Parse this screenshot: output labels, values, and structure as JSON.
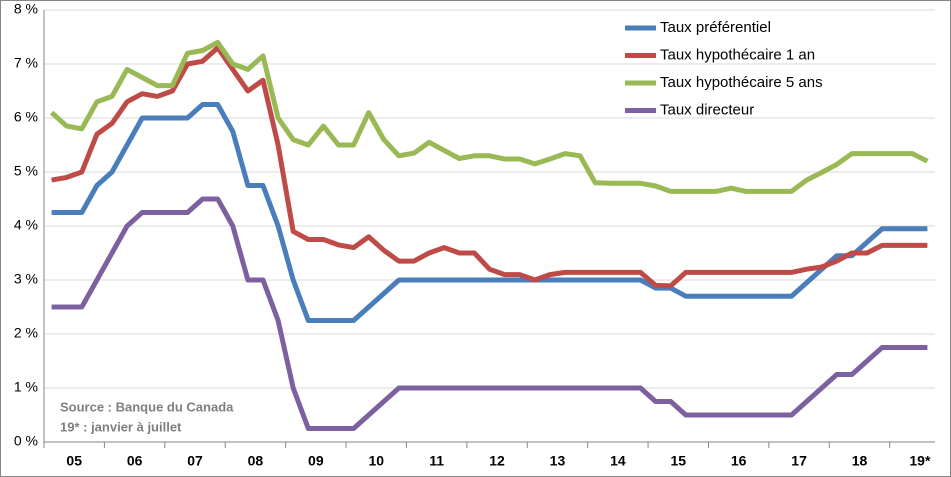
{
  "chart_data": {
    "type": "line",
    "categories": [
      null,
      null,
      "05",
      null,
      null,
      null,
      "06",
      null,
      null,
      null,
      "07",
      null,
      null,
      null,
      "08",
      null,
      null,
      null,
      "09",
      null,
      null,
      null,
      "10",
      null,
      null,
      null,
      "11",
      null,
      null,
      null,
      "12",
      null,
      null,
      null,
      "13",
      null,
      null,
      null,
      "14",
      null,
      null,
      null,
      "15",
      null,
      null,
      null,
      "16",
      null,
      null,
      null,
      "17",
      null,
      null,
      null,
      "18",
      null,
      null,
      null,
      "19*"
    ],
    "series": [
      {
        "name": "Taux préférentiel",
        "color": "#4a7ebb",
        "values": [
          4.25,
          4.25,
          4.25,
          4.75,
          5.0,
          5.5,
          6.0,
          6.0,
          6.0,
          6.0,
          6.25,
          6.25,
          5.75,
          4.75,
          4.75,
          4.0,
          3.0,
          2.25,
          2.25,
          2.25,
          2.25,
          2.5,
          2.75,
          3.0,
          3.0,
          3.0,
          3.0,
          3.0,
          3.0,
          3.0,
          3.0,
          3.0,
          3.0,
          3.0,
          3.0,
          3.0,
          3.0,
          3.0,
          3.0,
          3.0,
          2.85,
          2.85,
          2.7,
          2.7,
          2.7,
          2.7,
          2.7,
          2.7,
          2.7,
          2.7,
          2.95,
          3.2,
          3.45,
          3.45,
          3.7,
          3.95,
          3.95,
          3.95,
          3.95
        ]
      },
      {
        "name": "Taux hypothécaire 1 an",
        "color": "#be4b48",
        "values": [
          4.85,
          4.9,
          5.0,
          5.7,
          5.9,
          6.3,
          6.45,
          6.4,
          6.5,
          7.0,
          7.05,
          7.3,
          6.9,
          6.5,
          6.7,
          5.5,
          3.9,
          3.75,
          3.75,
          3.65,
          3.6,
          3.8,
          3.55,
          3.35,
          3.35,
          3.5,
          3.6,
          3.5,
          3.5,
          3.2,
          3.1,
          3.1,
          3.0,
          3.1,
          3.14,
          3.14,
          3.14,
          3.14,
          3.14,
          3.14,
          2.9,
          2.89,
          3.14,
          3.14,
          3.14,
          3.14,
          3.14,
          3.14,
          3.14,
          3.14,
          3.2,
          3.24,
          3.35,
          3.5,
          3.5,
          3.64,
          3.64,
          3.64,
          3.64
        ]
      },
      {
        "name": "Taux hypothécaire 5 ans",
        "color": "#98b954",
        "values": [
          6.1,
          5.85,
          5.8,
          6.3,
          6.4,
          6.9,
          6.75,
          6.6,
          6.6,
          7.2,
          7.25,
          7.4,
          7.0,
          6.9,
          7.15,
          6.0,
          5.6,
          5.5,
          5.85,
          5.5,
          5.5,
          6.1,
          5.6,
          5.3,
          5.35,
          5.55,
          5.4,
          5.25,
          5.3,
          5.3,
          5.24,
          5.24,
          5.15,
          5.24,
          5.34,
          5.3,
          4.8,
          4.79,
          4.79,
          4.79,
          4.74,
          4.64,
          4.64,
          4.64,
          4.64,
          4.7,
          4.64,
          4.64,
          4.64,
          4.64,
          4.85,
          4.99,
          5.14,
          5.34,
          5.34,
          5.34,
          5.34,
          5.34,
          5.2
        ]
      },
      {
        "name": "Taux directeur",
        "color": "#7d60a0",
        "values": [
          2.5,
          2.5,
          2.5,
          3.0,
          3.5,
          4.0,
          4.25,
          4.25,
          4.25,
          4.25,
          4.5,
          4.5,
          4.0,
          3.0,
          3.0,
          2.25,
          1.0,
          0.25,
          0.25,
          0.25,
          0.25,
          0.5,
          0.75,
          1.0,
          1.0,
          1.0,
          1.0,
          1.0,
          1.0,
          1.0,
          1.0,
          1.0,
          1.0,
          1.0,
          1.0,
          1.0,
          1.0,
          1.0,
          1.0,
          1.0,
          0.75,
          0.75,
          0.5,
          0.5,
          0.5,
          0.5,
          0.5,
          0.5,
          0.5,
          0.5,
          0.75,
          1.0,
          1.25,
          1.25,
          1.5,
          1.75,
          1.75,
          1.75,
          1.75
        ]
      }
    ],
    "ylim": [
      0,
      8
    ],
    "yticks": [
      {
        "value": 0,
        "label": "0 %"
      },
      {
        "value": 1,
        "label": "1 %"
      },
      {
        "value": 2,
        "label": "2 %"
      },
      {
        "value": 3,
        "label": "3 %"
      },
      {
        "value": 4,
        "label": "4 %"
      },
      {
        "value": 5,
        "label": "5 %"
      },
      {
        "value": 6,
        "label": "6 %"
      },
      {
        "value": 7,
        "label": "7 %"
      },
      {
        "value": 8,
        "label": "8 %"
      }
    ],
    "grid": true,
    "legend": "top-right",
    "annotations": [
      "Source : Banque du Canada",
      "19* :  janvier à juillet"
    ]
  }
}
